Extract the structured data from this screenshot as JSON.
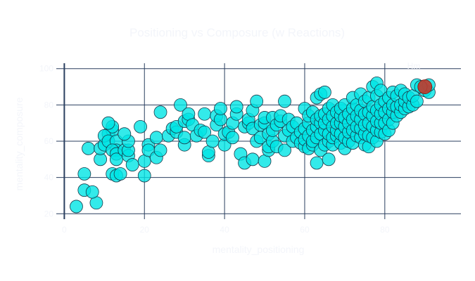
{
  "chart_data": {
    "type": "scatter",
    "title": "Positioning vs Composure (w Reactions)",
    "xlabel": "mentality_positioning",
    "ylabel": "mentality_composure",
    "xlim": [
      -2,
      99
    ],
    "ylim": [
      17,
      103
    ],
    "xticks": [
      0,
      20,
      40,
      60,
      80
    ],
    "yticks": [
      20,
      40,
      60,
      80,
      100
    ],
    "grid": true,
    "annotation": "Hm",
    "colors": {
      "points": "#00e5e5",
      "highlight": "#c0392b",
      "grid": "#2a3f5f",
      "title_text": "#f3f5fa"
    },
    "series": [
      {
        "role": "players",
        "points": [
          [
            3,
            24
          ],
          [
            8,
            26
          ],
          [
            5,
            33
          ],
          [
            7,
            32
          ],
          [
            5,
            42
          ],
          [
            12,
            42
          ],
          [
            13,
            41
          ],
          [
            14,
            42
          ],
          [
            6,
            56
          ],
          [
            9,
            50
          ],
          [
            9,
            56
          ],
          [
            10,
            58
          ],
          [
            11,
            64
          ],
          [
            12,
            66
          ],
          [
            12,
            68
          ],
          [
            11,
            70
          ],
          [
            10,
            63
          ],
          [
            11,
            60
          ],
          [
            13,
            60
          ],
          [
            13,
            55
          ],
          [
            12,
            55
          ],
          [
            13,
            53
          ],
          [
            13,
            50
          ],
          [
            15,
            55
          ],
          [
            16,
            52
          ],
          [
            16,
            55
          ],
          [
            16,
            60
          ],
          [
            15,
            64
          ],
          [
            17,
            47
          ],
          [
            19,
            68
          ],
          [
            20,
            41
          ],
          [
            20,
            49
          ],
          [
            21,
            58
          ],
          [
            21,
            55
          ],
          [
            23,
            51
          ],
          [
            23,
            62
          ],
          [
            24,
            55
          ],
          [
            24,
            76
          ],
          [
            26,
            63
          ],
          [
            27,
            67
          ],
          [
            28,
            65
          ],
          [
            28,
            68
          ],
          [
            29,
            80
          ],
          [
            30,
            58
          ],
          [
            30,
            62
          ],
          [
            30,
            71
          ],
          [
            31,
            72
          ],
          [
            31,
            75
          ],
          [
            32,
            69
          ],
          [
            33,
            63
          ],
          [
            34,
            66
          ],
          [
            35,
            65
          ],
          [
            35,
            75
          ],
          [
            36,
            52
          ],
          [
            36,
            54
          ],
          [
            37,
            60
          ],
          [
            38,
            69
          ],
          [
            38,
            74
          ],
          [
            39,
            72
          ],
          [
            39,
            78
          ],
          [
            40,
            58
          ],
          [
            40,
            64
          ],
          [
            41,
            65
          ],
          [
            42,
            62
          ],
          [
            42,
            70
          ],
          [
            43,
            75
          ],
          [
            43,
            79
          ],
          [
            44,
            53
          ],
          [
            45,
            48
          ],
          [
            45,
            68
          ],
          [
            46,
            70
          ],
          [
            46,
            72
          ],
          [
            47,
            50
          ],
          [
            47,
            67
          ],
          [
            47,
            77
          ],
          [
            48,
            82
          ],
          [
            48,
            60
          ],
          [
            49,
            62
          ],
          [
            49,
            69
          ],
          [
            50,
            70
          ],
          [
            50,
            73
          ],
          [
            50,
            49
          ],
          [
            51,
            55
          ],
          [
            51,
            57
          ],
          [
            51,
            64
          ],
          [
            52,
            60
          ],
          [
            52,
            66
          ],
          [
            52,
            73
          ],
          [
            53,
            57
          ],
          [
            53,
            69
          ],
          [
            54,
            71
          ],
          [
            54,
            74
          ],
          [
            55,
            55
          ],
          [
            55,
            82
          ],
          [
            55,
            63
          ],
          [
            56,
            72
          ],
          [
            56,
            66
          ],
          [
            57,
            68
          ],
          [
            57,
            60
          ],
          [
            58,
            62
          ],
          [
            58,
            70
          ],
          [
            59,
            59
          ],
          [
            59,
            65
          ],
          [
            60,
            57
          ],
          [
            60,
            61
          ],
          [
            60,
            67
          ],
          [
            60,
            78
          ],
          [
            61,
            56
          ],
          [
            61,
            63
          ],
          [
            61,
            70
          ],
          [
            61,
            74
          ],
          [
            62,
            58
          ],
          [
            62,
            60
          ],
          [
            62,
            66
          ],
          [
            62,
            76
          ],
          [
            63,
            48
          ],
          [
            63,
            62
          ],
          [
            63,
            68
          ],
          [
            63,
            72
          ],
          [
            63,
            84
          ],
          [
            64,
            55
          ],
          [
            64,
            64
          ],
          [
            64,
            70
          ],
          [
            64,
            74
          ],
          [
            64,
            86
          ],
          [
            65,
            58
          ],
          [
            65,
            66
          ],
          [
            65,
            70
          ],
          [
            65,
            75
          ],
          [
            65,
            87
          ],
          [
            66,
            50
          ],
          [
            66,
            60
          ],
          [
            66,
            64
          ],
          [
            66,
            72
          ],
          [
            66,
            78
          ],
          [
            67,
            58
          ],
          [
            67,
            62
          ],
          [
            67,
            68
          ],
          [
            67,
            74
          ],
          [
            67,
            80
          ],
          [
            68,
            63
          ],
          [
            68,
            66
          ],
          [
            68,
            70
          ],
          [
            68,
            76
          ],
          [
            69,
            59
          ],
          [
            69,
            64
          ],
          [
            69,
            70
          ],
          [
            69,
            74
          ],
          [
            69,
            78
          ],
          [
            70,
            56
          ],
          [
            70,
            62
          ],
          [
            70,
            68
          ],
          [
            70,
            73
          ],
          [
            70,
            80
          ],
          [
            71,
            60
          ],
          [
            71,
            65
          ],
          [
            71,
            70
          ],
          [
            71,
            75
          ],
          [
            72,
            59
          ],
          [
            72,
            66
          ],
          [
            72,
            72
          ],
          [
            72,
            78
          ],
          [
            72,
            84
          ],
          [
            73,
            63
          ],
          [
            73,
            68
          ],
          [
            73,
            74
          ],
          [
            73,
            80
          ],
          [
            74,
            62
          ],
          [
            74,
            67
          ],
          [
            74,
            72
          ],
          [
            74,
            77
          ],
          [
            74,
            86
          ],
          [
            75,
            58
          ],
          [
            75,
            64
          ],
          [
            75,
            69
          ],
          [
            75,
            75
          ],
          [
            75,
            82
          ],
          [
            76,
            57
          ],
          [
            76,
            63
          ],
          [
            76,
            70
          ],
          [
            76,
            76
          ],
          [
            76,
            84
          ],
          [
            77,
            62
          ],
          [
            77,
            68
          ],
          [
            77,
            74
          ],
          [
            77,
            79
          ],
          [
            77,
            90
          ],
          [
            78,
            60
          ],
          [
            78,
            66
          ],
          [
            78,
            71
          ],
          [
            78,
            77
          ],
          [
            78,
            85
          ],
          [
            78,
            92
          ],
          [
            79,
            65
          ],
          [
            79,
            70
          ],
          [
            79,
            75
          ],
          [
            79,
            80
          ],
          [
            79,
            88
          ],
          [
            80,
            64
          ],
          [
            80,
            70
          ],
          [
            80,
            76
          ],
          [
            80,
            82
          ],
          [
            81,
            66
          ],
          [
            81,
            72
          ],
          [
            81,
            78
          ],
          [
            81,
            84
          ],
          [
            82,
            70
          ],
          [
            82,
            76
          ],
          [
            82,
            80
          ],
          [
            82,
            87
          ],
          [
            83,
            74
          ],
          [
            83,
            79
          ],
          [
            83,
            85
          ],
          [
            84,
            76
          ],
          [
            84,
            80
          ],
          [
            84,
            88
          ],
          [
            85,
            78
          ],
          [
            85,
            82
          ],
          [
            85,
            86
          ],
          [
            86,
            79
          ],
          [
            86,
            84
          ],
          [
            87,
            80
          ],
          [
            87,
            85
          ],
          [
            88,
            82
          ],
          [
            88,
            91
          ],
          [
            90,
            88
          ],
          [
            91,
            87
          ],
          [
            91,
            91
          ],
          [
            89,
            90
          ]
        ]
      },
      {
        "role": "highlight",
        "points": [
          [
            90,
            90
          ]
        ]
      }
    ]
  }
}
